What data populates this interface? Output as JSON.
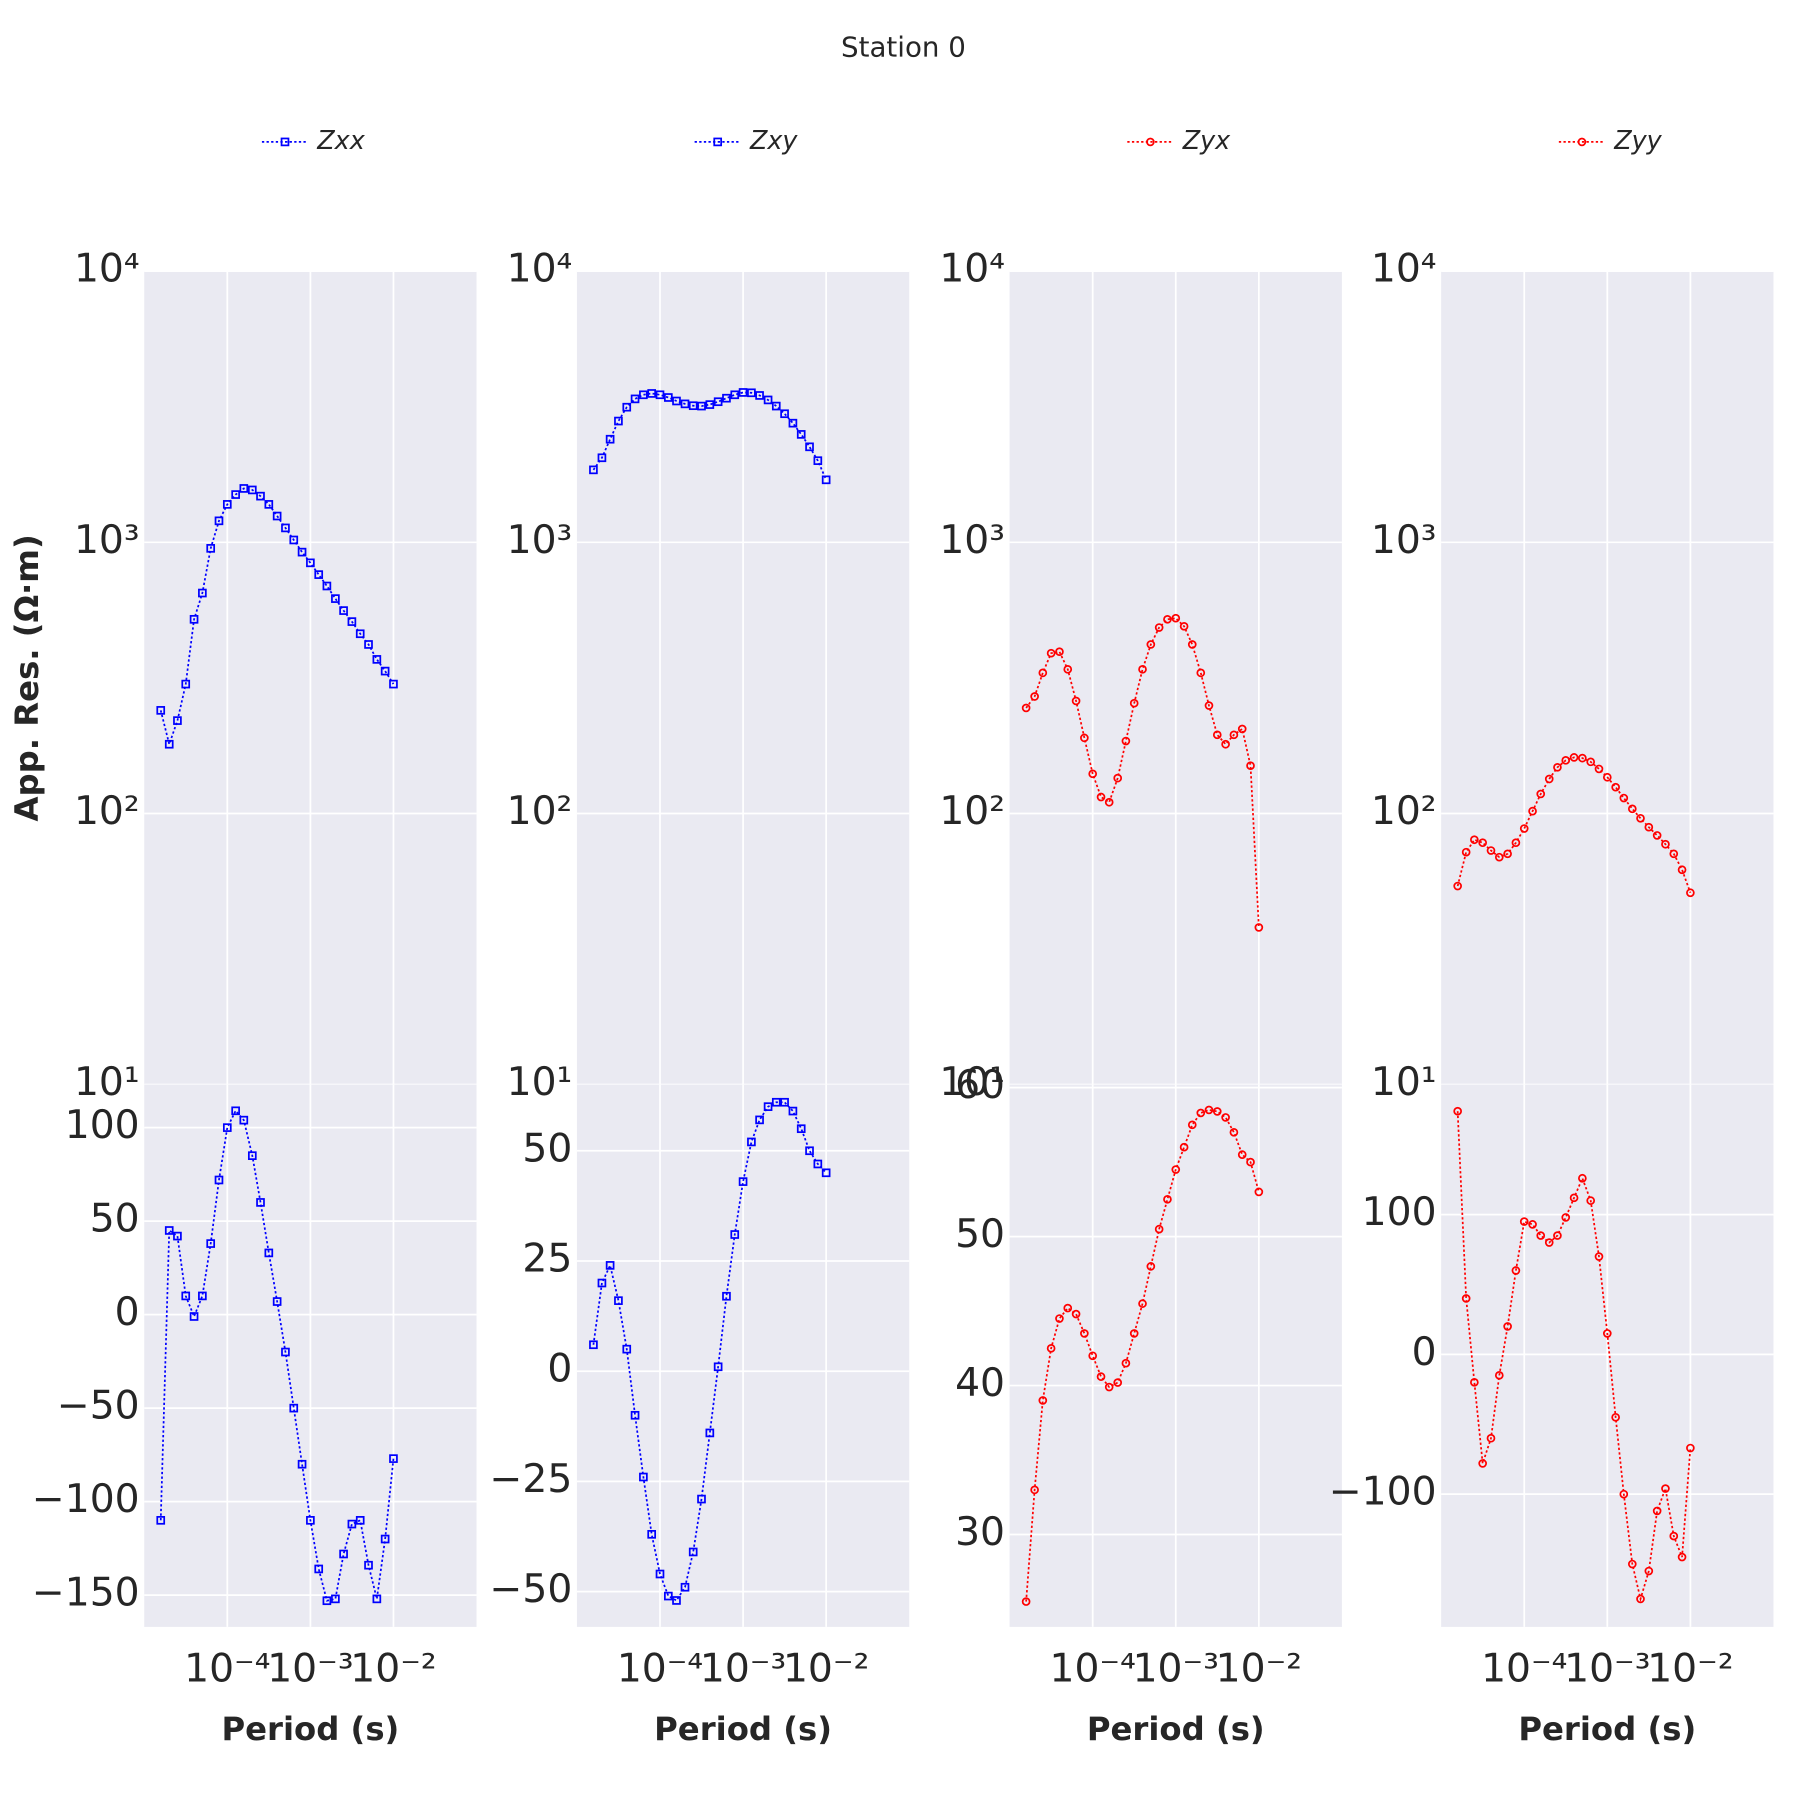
{
  "title": "Station 0",
  "chart_data": [
    {
      "type": "line",
      "xscale": "log",
      "yscale": "log",
      "grid": true,
      "ylabel": "App. Res. (Ω·m)",
      "x": [
        1.58e-05,
        2e-05,
        2.51e-05,
        3.16e-05,
        3.98e-05,
        5.01e-05,
        6.31e-05,
        7.94e-05,
        0.0001,
        0.000126,
        0.000158,
        0.0002,
        0.000251,
        0.000316,
        0.000398,
        0.000501,
        0.000631,
        0.000794,
        0.001,
        0.00126,
        0.00158,
        0.002,
        0.00251,
        0.00316,
        0.00398,
        0.00501,
        0.00631,
        0.00794,
        0.01
      ],
      "xlim": [
        1e-05,
        0.1
      ],
      "ylim": [
        10,
        10000
      ],
      "yticks": [
        {
          "value": 10,
          "label": "10¹"
        },
        {
          "value": 100,
          "label": "10²"
        },
        {
          "value": 1000,
          "label": "10³"
        },
        {
          "value": 10000,
          "label": "10⁴"
        }
      ],
      "series": [
        {
          "name": "Zxx",
          "color": "#0000ff",
          "marker": "square",
          "values": [
            240,
            180,
            220,
            300,
            520,
            650,
            950,
            1200,
            1380,
            1500,
            1580,
            1560,
            1480,
            1380,
            1250,
            1130,
            1020,
            920,
            840,
            760,
            690,
            620,
            560,
            510,
            460,
            420,
            370,
            335,
            300
          ]
        }
      ]
    },
    {
      "type": "line",
      "xscale": "log",
      "yscale": "log",
      "grid": true,
      "x": [
        1.58e-05,
        2e-05,
        2.51e-05,
        3.16e-05,
        3.98e-05,
        5.01e-05,
        6.31e-05,
        7.94e-05,
        0.0001,
        0.000126,
        0.000158,
        0.0002,
        0.000251,
        0.000316,
        0.000398,
        0.000501,
        0.000631,
        0.000794,
        0.001,
        0.00126,
        0.00158,
        0.002,
        0.00251,
        0.00316,
        0.00398,
        0.00501,
        0.00631,
        0.00794,
        0.01
      ],
      "xlim": [
        1e-05,
        0.1
      ],
      "ylim": [
        10,
        10000
      ],
      "yticks": [
        {
          "value": 10,
          "label": "10¹"
        },
        {
          "value": 100,
          "label": "10²"
        },
        {
          "value": 1000,
          "label": "10³"
        },
        {
          "value": 10000,
          "label": "10⁴"
        }
      ],
      "series": [
        {
          "name": "Zxy",
          "color": "#0000ff",
          "marker": "square",
          "values": [
            1850,
            2050,
            2400,
            2800,
            3150,
            3380,
            3500,
            3540,
            3500,
            3420,
            3320,
            3240,
            3190,
            3180,
            3220,
            3300,
            3400,
            3500,
            3570,
            3560,
            3480,
            3350,
            3180,
            2980,
            2750,
            2500,
            2250,
            2000,
            1700
          ]
        }
      ]
    },
    {
      "type": "line",
      "xscale": "log",
      "yscale": "log",
      "grid": true,
      "x": [
        1.58e-05,
        2e-05,
        2.51e-05,
        3.16e-05,
        3.98e-05,
        5.01e-05,
        6.31e-05,
        7.94e-05,
        0.0001,
        0.000126,
        0.000158,
        0.0002,
        0.000251,
        0.000316,
        0.000398,
        0.000501,
        0.000631,
        0.000794,
        0.001,
        0.00126,
        0.00158,
        0.002,
        0.00251,
        0.00316,
        0.00398,
        0.00501,
        0.00631,
        0.00794,
        0.01
      ],
      "xlim": [
        1e-05,
        0.1
      ],
      "ylim": [
        10,
        10000
      ],
      "yticks": [
        {
          "value": 10,
          "label": "10¹"
        },
        {
          "value": 100,
          "label": "10²"
        },
        {
          "value": 1000,
          "label": "10³"
        },
        {
          "value": 10000,
          "label": "10⁴"
        }
      ],
      "series": [
        {
          "name": "Zyx",
          "color": "#ff0000",
          "marker": "circle",
          "values": [
            245,
            270,
            330,
            390,
            395,
            340,
            260,
            190,
            140,
            115,
            110,
            135,
            185,
            255,
            340,
            420,
            485,
            520,
            525,
            490,
            420,
            330,
            250,
            195,
            180,
            195,
            205,
            150,
            38
          ]
        }
      ]
    },
    {
      "type": "line",
      "xscale": "log",
      "yscale": "log",
      "grid": true,
      "x": [
        1.58e-05,
        2e-05,
        2.51e-05,
        3.16e-05,
        3.98e-05,
        5.01e-05,
        6.31e-05,
        7.94e-05,
        0.0001,
        0.000126,
        0.000158,
        0.0002,
        0.000251,
        0.000316,
        0.000398,
        0.000501,
        0.000631,
        0.000794,
        0.001,
        0.00126,
        0.00158,
        0.002,
        0.00251,
        0.00316,
        0.00398,
        0.00501,
        0.00631,
        0.00794,
        0.01
      ],
      "xlim": [
        1e-05,
        0.1
      ],
      "ylim": [
        10,
        10000
      ],
      "yticks": [
        {
          "value": 10,
          "label": "10¹"
        },
        {
          "value": 100,
          "label": "10²"
        },
        {
          "value": 1000,
          "label": "10³"
        },
        {
          "value": 10000,
          "label": "10⁴"
        }
      ],
      "series": [
        {
          "name": "Zyy",
          "color": "#ff0000",
          "marker": "circle",
          "values": [
            54,
            72,
            80,
            78,
            73,
            69,
            71,
            78,
            88,
            102,
            118,
            134,
            148,
            157,
            161,
            160,
            155,
            146,
            136,
            125,
            114,
            104,
            96,
            89,
            83,
            77,
            71,
            62,
            51
          ]
        }
      ]
    },
    {
      "type": "line",
      "xscale": "log",
      "grid": true,
      "xlabel": "Period (s)",
      "x": [
        1.58e-05,
        2e-05,
        2.51e-05,
        3.16e-05,
        3.98e-05,
        5.01e-05,
        6.31e-05,
        7.94e-05,
        0.0001,
        0.000126,
        0.000158,
        0.0002,
        0.000251,
        0.000316,
        0.000398,
        0.000501,
        0.000631,
        0.000794,
        0.001,
        0.00126,
        0.00158,
        0.002,
        0.00251,
        0.00316,
        0.00398,
        0.00501,
        0.00631,
        0.00794,
        0.01
      ],
      "xlim": [
        1e-05,
        0.1
      ],
      "xticks": [
        {
          "value": 0.0001,
          "label": "10⁻⁴"
        },
        {
          "value": 0.001,
          "label": "10⁻³"
        },
        {
          "value": 0.01,
          "label": "10⁻²"
        }
      ],
      "ylim": [
        -167,
        123
      ],
      "yticks": [
        {
          "value": -150,
          "label": "−150"
        },
        {
          "value": -100,
          "label": "−100"
        },
        {
          "value": -50,
          "label": "−50"
        },
        0,
        50,
        100
      ],
      "series": [
        {
          "color": "#0000ff",
          "marker": "square",
          "values": [
            -110,
            45,
            42,
            10,
            -1,
            10,
            38,
            72,
            100,
            109,
            104,
            85,
            60,
            33,
            7,
            -20,
            -50,
            -80,
            -110,
            -136,
            -153,
            -152,
            -128,
            -112,
            -110,
            -134,
            -152,
            -120,
            -77
          ]
        }
      ]
    },
    {
      "type": "line",
      "xscale": "log",
      "grid": true,
      "xlabel": "Period (s)",
      "x": [
        1.58e-05,
        2e-05,
        2.51e-05,
        3.16e-05,
        3.98e-05,
        5.01e-05,
        6.31e-05,
        7.94e-05,
        0.0001,
        0.000126,
        0.000158,
        0.0002,
        0.000251,
        0.000316,
        0.000398,
        0.000501,
        0.000631,
        0.000794,
        0.001,
        0.00126,
        0.00158,
        0.002,
        0.00251,
        0.00316,
        0.00398,
        0.00501,
        0.00631,
        0.00794,
        0.01
      ],
      "xlim": [
        1e-05,
        0.1
      ],
      "xticks": [
        {
          "value": 0.0001,
          "label": "10⁻⁴"
        },
        {
          "value": 0.001,
          "label": "10⁻³"
        },
        {
          "value": 0.01,
          "label": "10⁻²"
        }
      ],
      "ylim": [
        -58,
        65
      ],
      "yticks": [
        {
          "value": -50,
          "label": "−50"
        },
        {
          "value": -25,
          "label": "−25"
        },
        0,
        25,
        50
      ],
      "series": [
        {
          "color": "#0000ff",
          "marker": "square",
          "values": [
            6,
            20,
            24,
            16,
            5,
            -10,
            -24,
            -37,
            -46,
            -51,
            -52,
            -49,
            -41,
            -29,
            -14,
            1,
            17,
            31,
            43,
            52,
            57,
            60,
            61,
            61,
            59,
            55,
            50,
            47,
            45
          ]
        }
      ]
    },
    {
      "type": "line",
      "xscale": "log",
      "grid": true,
      "xlabel": "Period (s)",
      "x": [
        1.58e-05,
        2e-05,
        2.51e-05,
        3.16e-05,
        3.98e-05,
        5.01e-05,
        6.31e-05,
        7.94e-05,
        0.0001,
        0.000126,
        0.000158,
        0.0002,
        0.000251,
        0.000316,
        0.000398,
        0.000501,
        0.000631,
        0.000794,
        0.001,
        0.00126,
        0.00158,
        0.002,
        0.00251,
        0.00316,
        0.00398,
        0.00501,
        0.00631,
        0.00794,
        0.01
      ],
      "xlim": [
        1e-05,
        0.1
      ],
      "xticks": [
        {
          "value": 0.0001,
          "label": "10⁻⁴"
        },
        {
          "value": 0.001,
          "label": "10⁻³"
        },
        {
          "value": 0.01,
          "label": "10⁻²"
        }
      ],
      "ylim": [
        23.8,
        60.2
      ],
      "yticks": [
        30,
        40,
        50,
        60
      ],
      "series": [
        {
          "color": "#ff0000",
          "marker": "circle",
          "values": [
            25.5,
            33,
            39,
            42.5,
            44.5,
            45.2,
            44.8,
            43.5,
            42,
            40.6,
            39.9,
            40.2,
            41.5,
            43.5,
            45.5,
            48,
            50.5,
            52.5,
            54.5,
            56,
            57.5,
            58.3,
            58.5,
            58.4,
            58,
            57,
            55.5,
            55,
            53
          ]
        }
      ]
    },
    {
      "type": "line",
      "xscale": "log",
      "grid": true,
      "xlabel": "Period (s)",
      "x": [
        1.58e-05,
        2e-05,
        2.51e-05,
        3.16e-05,
        3.98e-05,
        5.01e-05,
        6.31e-05,
        7.94e-05,
        0.0001,
        0.000126,
        0.000158,
        0.0002,
        0.000251,
        0.000316,
        0.000398,
        0.000501,
        0.000631,
        0.000794,
        0.001,
        0.00126,
        0.00158,
        0.002,
        0.00251,
        0.00316,
        0.00398,
        0.00501,
        0.00631,
        0.00794,
        0.01
      ],
      "xlim": [
        1e-05,
        0.1
      ],
      "xticks": [
        {
          "value": 0.0001,
          "label": "10⁻⁴"
        },
        {
          "value": 0.001,
          "label": "10⁻³"
        },
        {
          "value": 0.01,
          "label": "10⁻²"
        }
      ],
      "ylim": [
        -195,
        193
      ],
      "yticks": [
        {
          "value": -100,
          "label": "−100"
        },
        0,
        100
      ],
      "series": [
        {
          "color": "#ff0000",
          "marker": "circle",
          "values": [
            174,
            40,
            -20,
            -78,
            -60,
            -15,
            20,
            60,
            95,
            93,
            85,
            80,
            85,
            98,
            112,
            126,
            110,
            70,
            15,
            -45,
            -100,
            -150,
            -175,
            -155,
            -112,
            -96,
            -130,
            -145,
            -67
          ]
        }
      ]
    }
  ]
}
